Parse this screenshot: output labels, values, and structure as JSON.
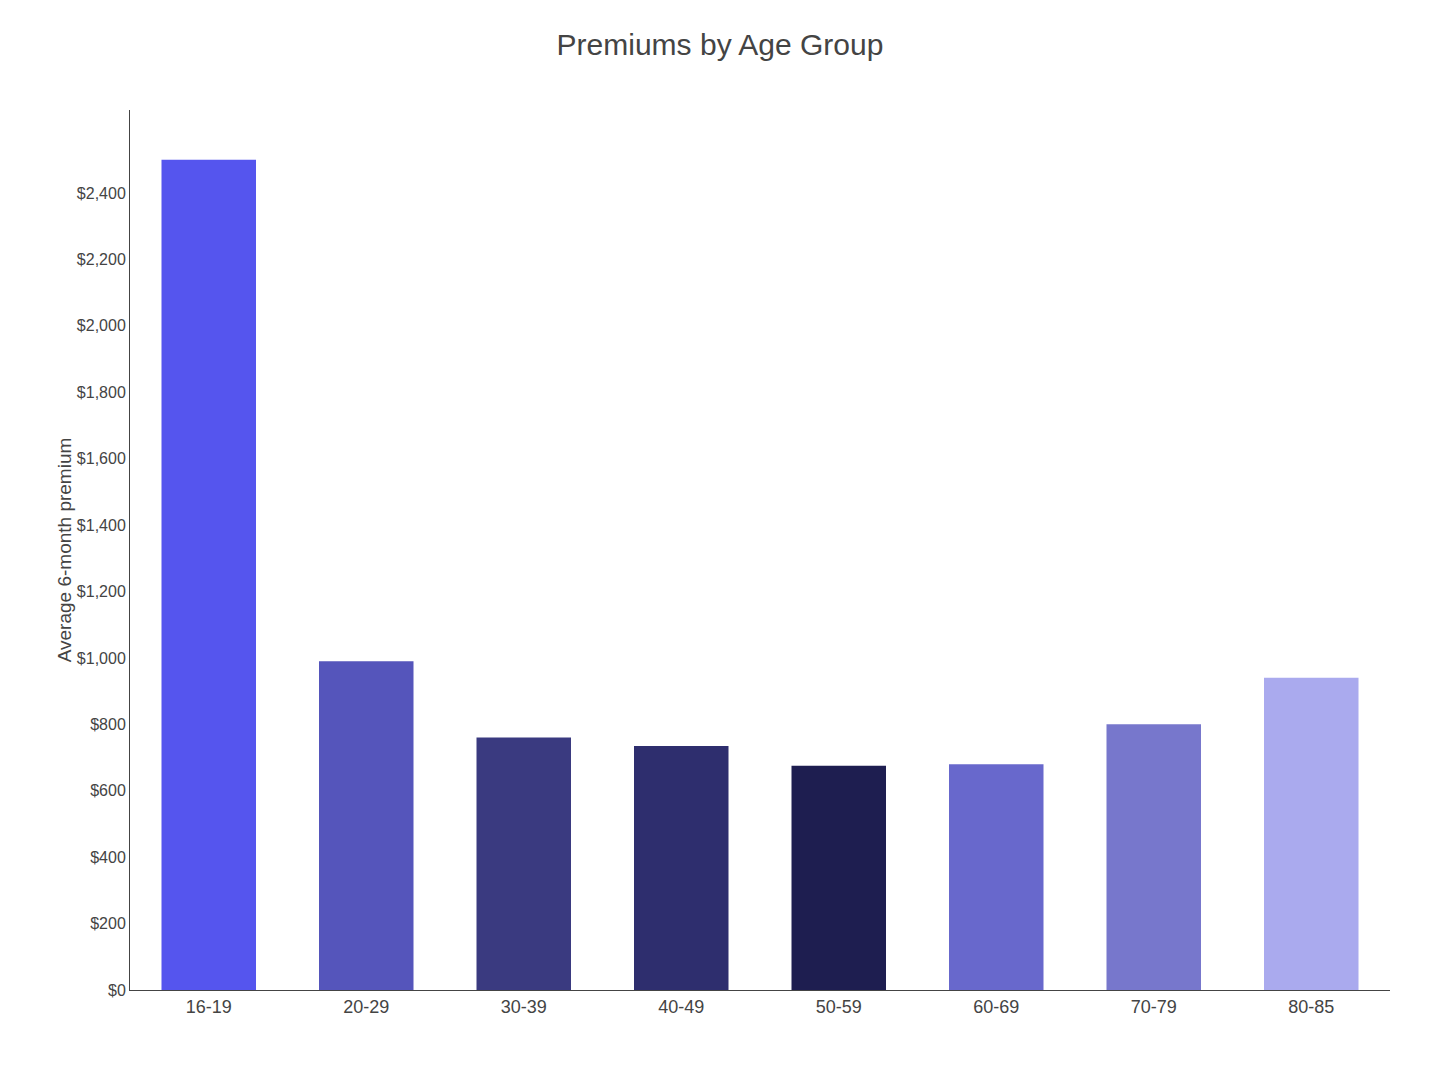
{
  "chart_data": {
    "type": "bar",
    "title": "Premiums by Age Group",
    "categories": [
      "16-19",
      "20-29",
      "30-39",
      "40-49",
      "50-59",
      "60-69",
      "70-79",
      "80-85"
    ],
    "values": [
      2500,
      990,
      760,
      735,
      675,
      680,
      800,
      940
    ],
    "colors": [
      "#5555ee",
      "#5555bb",
      "#3a3a80",
      "#2e2e6e",
      "#1e1e50",
      "#6868cc",
      "#7777cc",
      "#aaaaee"
    ],
    "ylabel": "Average 6-month premium",
    "ylim": [
      0,
      2650
    ],
    "yticks": [
      {
        "value": 0,
        "label": "$0"
      },
      {
        "value": 200,
        "label": "$200"
      },
      {
        "value": 400,
        "label": "$400"
      },
      {
        "value": 600,
        "label": "$600"
      },
      {
        "value": 800,
        "label": "$800"
      },
      {
        "value": 1000,
        "label": "$1,000"
      },
      {
        "value": 1200,
        "label": "$1,200"
      },
      {
        "value": 1400,
        "label": "$1,400"
      },
      {
        "value": 1600,
        "label": "$1,600"
      },
      {
        "value": 1800,
        "label": "$1,800"
      },
      {
        "value": 2000,
        "label": "$2,000"
      },
      {
        "value": 2200,
        "label": "$2,200"
      },
      {
        "value": 2400,
        "label": "$2,400"
      }
    ],
    "grid": false
  }
}
